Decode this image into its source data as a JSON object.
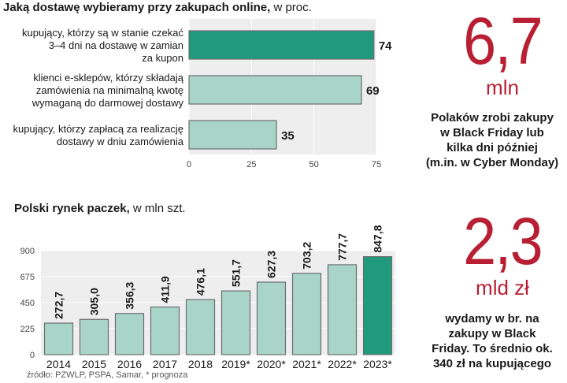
{
  "chart_data": [
    {
      "type": "bar",
      "orientation": "horizontal",
      "title": "Jaką dostawę wybieramy przy zakupach online,",
      "unit": "w proc.",
      "categories": [
        [
          "kupujący, którzy są w stanie czekać",
          "3–4 dni na dostawę w zamian",
          "za kupon"
        ],
        [
          "klienci e-sklepów, którzy składają",
          "zamówienia na minimalną kwotę",
          "wymaganą do darmowej dostawy"
        ],
        [
          "kupujący, którzy zapłacą za realizację",
          "dostawy w dniu zamówienia"
        ]
      ],
      "values": [
        74,
        69,
        35
      ],
      "value_labels": [
        "74",
        "69",
        "35"
      ],
      "xlim": [
        0,
        75
      ],
      "xticks": [
        0,
        25,
        50,
        75
      ],
      "highlight_index": 0,
      "colors": {
        "highlight": "#1f9a7d",
        "normal": "#a8d5c8",
        "edge": "#6e6e6e",
        "plot_bg": "#eeeeee"
      }
    },
    {
      "type": "bar",
      "title": "Polski rynek paczek,",
      "unit": "w mln szt.",
      "categories": [
        "2014",
        "2015",
        "2016",
        "2017",
        "2018",
        "2019*",
        "2020*",
        "2021*",
        "2022*",
        "2023*"
      ],
      "values": [
        272.7,
        305.0,
        356.3,
        411.9,
        476.1,
        551.7,
        627.3,
        703.2,
        777.7,
        847.8
      ],
      "value_labels": [
        "272,7",
        "305,0",
        "356,3",
        "411,9",
        "476,1",
        "551,7",
        "627,3",
        "703,2",
        "777,7",
        "847,8"
      ],
      "ylim": [
        0,
        900
      ],
      "yticks": [
        0,
        225,
        450,
        675,
        900
      ],
      "highlight_index": 9,
      "colors": {
        "highlight": "#1f9a7d",
        "normal": "#a8d5c8",
        "edge": "#6e6e6e",
        "plot_bg": "#eeeeee"
      }
    }
  ],
  "stats": [
    {
      "number": "6,7",
      "unit": "mln",
      "text": [
        "Polaków zrobi zakupy",
        "w Black Friday lub",
        "kilka dni później",
        "(m.in. w Cyber Monday)"
      ]
    },
    {
      "number": "2,3",
      "unit": "mld zł",
      "text": [
        "wydamy w br. na",
        "zakupy w Black",
        "Friday. To średnio ok.",
        "340 zł na kupującego"
      ]
    }
  ],
  "source": "źródło: PZWLP, PSPA, Samar, * prognoza",
  "colors": {
    "accent": "#b81f33"
  }
}
